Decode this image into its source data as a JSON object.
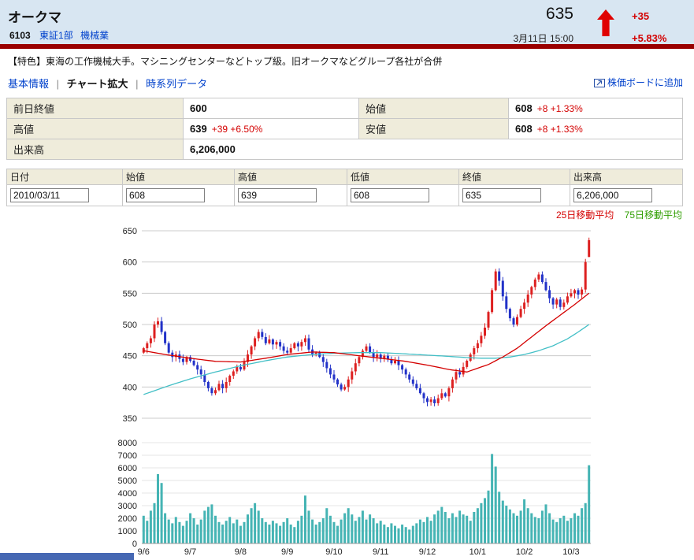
{
  "colors": {
    "page_bg": "#d8e6f2",
    "divider_maroon": "#990000",
    "link_blue": "#0041cc",
    "accent_red": "#d40000",
    "label_cell_bg": "#efecdb",
    "footer_blue": "#4668b3"
  },
  "header": {
    "company_name": "オークマ",
    "code": "6103",
    "market": "東証1部",
    "industry": "機械業",
    "price": "635",
    "change": "+35",
    "change_pct": "+5.83%",
    "datetime": "3月11日 15:00"
  },
  "feature": {
    "text": "【特色】東海の工作機械大手。マシニングセンターなどトップ級。旧オークマなどグループ各社が合併"
  },
  "nav": {
    "separator": "|",
    "items": [
      {
        "label": "基本情報",
        "current": false
      },
      {
        "label": "チャート拡大",
        "current": true
      },
      {
        "label": "時系列データ",
        "current": false
      }
    ],
    "add_to_board": "株価ボードに追加"
  },
  "quote_table": {
    "rows": [
      {
        "label1": "前日終値",
        "value1": "600",
        "value1_sub": "",
        "label2": "始値",
        "value2": "608",
        "value2_sub": "+8 +1.33%"
      },
      {
        "label1": "高値",
        "value1": "639",
        "value1_sub": "+39 +6.50%",
        "label2": "安値",
        "value2": "608",
        "value2_sub": "+8 +1.33%"
      },
      {
        "label1": "出来高",
        "value1": "6,206,000"
      }
    ]
  },
  "input_form": {
    "headers": [
      "日付",
      "始値",
      "高値",
      "低値",
      "終値",
      "出来高"
    ],
    "values": [
      "2010/03/11",
      "608",
      "639",
      "608",
      "635",
      "6,206,000"
    ]
  },
  "chart_data": {
    "type": "candlestick",
    "has_volume_subchart": true,
    "price_axis": {
      "min": 350,
      "max": 650,
      "ticks": [
        650,
        600,
        550,
        500,
        450,
        400,
        350
      ]
    },
    "volume_axis": {
      "min": 0,
      "max": 8000,
      "ticks": [
        8000,
        7000,
        6000,
        5000,
        4000,
        3000,
        2000,
        1000,
        0
      ]
    },
    "x_labels": [
      "9/6",
      "9/7",
      "9/8",
      "9/9",
      "9/10",
      "9/11",
      "9/12",
      "10/1",
      "10/2",
      "10/3"
    ],
    "x_label_indices": [
      0,
      13,
      27,
      40,
      53,
      66,
      79,
      93,
      106,
      119
    ],
    "legend": {
      "ma25_label": "25日移動平均",
      "ma75_label": "75日移動平均",
      "ma25_color": "#d40000",
      "ma75_color": "#2f9e00"
    },
    "series_colors": {
      "up": "#dd2020",
      "down": "#2232c8",
      "volume": "#45b4b4",
      "ma25_line": "#d40000",
      "ma75_line": "#42bfc6",
      "grid": "#cccccc",
      "grid_light": "#e6e6e6",
      "axis": "#999999"
    },
    "first_open": 455,
    "closes": [
      462,
      470,
      478,
      500,
      505,
      488,
      470,
      455,
      448,
      452,
      445,
      440,
      448,
      442,
      435,
      428,
      420,
      408,
      398,
      390,
      395,
      405,
      398,
      408,
      418,
      425,
      432,
      428,
      440,
      452,
      465,
      478,
      488,
      480,
      470,
      476,
      468,
      472,
      465,
      458,
      455,
      462,
      470,
      465,
      472,
      478,
      460,
      452,
      455,
      448,
      440,
      430,
      420,
      412,
      404,
      396,
      400,
      412,
      425,
      438,
      448,
      458,
      465,
      455,
      448,
      452,
      445,
      450,
      444,
      438,
      442,
      435,
      428,
      420,
      412,
      405,
      398,
      390,
      382,
      376,
      380,
      374,
      382,
      390,
      385,
      398,
      412,
      424,
      420,
      432,
      442,
      452,
      462,
      470,
      482,
      495,
      520,
      555,
      585,
      570,
      545,
      525,
      510,
      500,
      512,
      525,
      535,
      548,
      560,
      572,
      580,
      568,
      555,
      542,
      532,
      540,
      528,
      535,
      545,
      550,
      555,
      548,
      556,
      600,
      635
    ],
    "last_candle": {
      "open": 608,
      "high": 639,
      "low": 608,
      "close": 635
    },
    "ma25_points": [
      [
        0,
        458
      ],
      [
        6,
        452
      ],
      [
        13,
        446
      ],
      [
        20,
        441
      ],
      [
        27,
        440
      ],
      [
        34,
        446
      ],
      [
        40,
        452
      ],
      [
        47,
        456
      ],
      [
        53,
        455
      ],
      [
        60,
        450
      ],
      [
        66,
        446
      ],
      [
        73,
        441
      ],
      [
        79,
        435
      ],
      [
        85,
        428
      ],
      [
        90,
        424
      ],
      [
        93,
        430
      ],
      [
        96,
        436
      ],
      [
        100,
        448
      ],
      [
        104,
        462
      ],
      [
        108,
        480
      ],
      [
        112,
        498
      ],
      [
        116,
        515
      ],
      [
        120,
        532
      ],
      [
        124,
        550
      ]
    ],
    "ma75_points": [
      [
        0,
        388
      ],
      [
        7,
        402
      ],
      [
        13,
        413
      ],
      [
        20,
        424
      ],
      [
        27,
        434
      ],
      [
        34,
        442
      ],
      [
        40,
        448
      ],
      [
        47,
        452
      ],
      [
        53,
        454
      ],
      [
        60,
        455
      ],
      [
        66,
        455
      ],
      [
        73,
        453
      ],
      [
        79,
        451
      ],
      [
        85,
        449
      ],
      [
        90,
        447
      ],
      [
        94,
        446
      ],
      [
        98,
        446
      ],
      [
        102,
        448
      ],
      [
        106,
        452
      ],
      [
        110,
        458
      ],
      [
        114,
        466
      ],
      [
        118,
        477
      ],
      [
        121,
        488
      ],
      [
        124,
        500
      ]
    ],
    "volumes": [
      2200,
      1800,
      2600,
      3200,
      5500,
      4800,
      2400,
      1900,
      1600,
      2100,
      1700,
      1400,
      1800,
      2400,
      2000,
      1500,
      1900,
      2600,
      2900,
      3100,
      2200,
      1700,
      1500,
      1800,
      2100,
      1600,
      1900,
      1400,
      1700,
      2300,
      2800,
      3200,
      2600,
      2000,
      1700,
      1500,
      1800,
      1600,
      1400,
      1700,
      2000,
      1500,
      1300,
      1800,
      2200,
      3800,
      2600,
      1900,
      1500,
      1700,
      2000,
      2800,
      2200,
      1700,
      1400,
      1900,
      2400,
      2800,
      2300,
      1800,
      2100,
      2600,
      1900,
      2300,
      2000,
      1600,
      1800,
      1500,
      1300,
      1600,
      1400,
      1200,
      1500,
      1300,
      1100,
      1400,
      1600,
      1900,
      1700,
      2100,
      1800,
      2300,
      2600,
      2900,
      2500,
      2000,
      2400,
      2100,
      2600,
      2300,
      2200,
      1800,
      2500,
      2800,
      3200,
      3600,
      4200,
      7100,
      6100,
      4100,
      3400,
      3000,
      2700,
      2400,
      2200,
      2600,
      3500,
      2800,
      2400,
      2100,
      2000,
      2600,
      3100,
      2400,
      1900,
      1700,
      2000,
      2200,
      1800,
      2000,
      2400,
      2200,
      2800,
      3200,
      6206
    ]
  }
}
